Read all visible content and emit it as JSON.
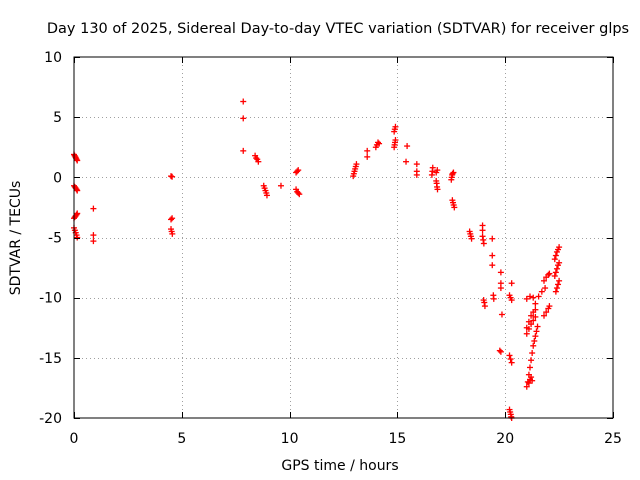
{
  "chart_data": {
    "type": "scatter",
    "title": "Day 130 of 2025, Sidereal Day-to-day VTEC variation (SDTVAR) for receiver glps",
    "xlabel": "GPS time / hours",
    "ylabel": "SDTVAR / TECUs",
    "xlim": [
      0,
      25
    ],
    "ylim": [
      -20,
      10
    ],
    "xticks": [
      0,
      5,
      10,
      15,
      20,
      25
    ],
    "yticks": [
      -20,
      -15,
      -10,
      -5,
      0,
      5,
      10
    ],
    "grid": true,
    "marker": "+",
    "color": "#ff0000",
    "series": [
      {
        "name": "SDTVAR",
        "points": [
          [
            0.0,
            1.9
          ],
          [
            0.03,
            1.8
          ],
          [
            0.06,
            1.7
          ],
          [
            0.09,
            1.6
          ],
          [
            0.12,
            1.5
          ],
          [
            0.15,
            1.4
          ],
          [
            0.0,
            -0.7
          ],
          [
            0.04,
            -0.8
          ],
          [
            0.08,
            -0.9
          ],
          [
            0.12,
            -1.0
          ],
          [
            0.15,
            -1.1
          ],
          [
            0.0,
            -3.4
          ],
          [
            0.04,
            -3.3
          ],
          [
            0.08,
            -3.2
          ],
          [
            0.12,
            -3.1
          ],
          [
            0.15,
            -3.0
          ],
          [
            0.0,
            -4.2
          ],
          [
            0.04,
            -4.4
          ],
          [
            0.08,
            -4.6
          ],
          [
            0.12,
            -4.8
          ],
          [
            0.15,
            -5.0
          ],
          [
            0.9,
            -2.6
          ],
          [
            0.9,
            -4.8
          ],
          [
            0.9,
            -5.3
          ],
          [
            4.5,
            0.1
          ],
          [
            4.55,
            0.05
          ],
          [
            4.5,
            -3.5
          ],
          [
            4.55,
            -3.4
          ],
          [
            4.5,
            -4.3
          ],
          [
            4.53,
            -4.5
          ],
          [
            4.56,
            -4.7
          ],
          [
            7.85,
            6.3
          ],
          [
            7.85,
            4.9
          ],
          [
            7.85,
            2.2
          ],
          [
            8.4,
            1.8
          ],
          [
            8.45,
            1.6
          ],
          [
            8.5,
            1.5
          ],
          [
            8.55,
            1.3
          ],
          [
            8.8,
            -0.7
          ],
          [
            8.84,
            -0.9
          ],
          [
            8.88,
            -1.1
          ],
          [
            8.92,
            -1.3
          ],
          [
            8.95,
            -1.5
          ],
          [
            9.6,
            -0.7
          ],
          [
            10.3,
            0.4
          ],
          [
            10.35,
            0.5
          ],
          [
            10.4,
            0.6
          ],
          [
            10.3,
            -1.0
          ],
          [
            10.35,
            -1.2
          ],
          [
            10.4,
            -1.3
          ],
          [
            10.45,
            -1.4
          ],
          [
            12.95,
            0.1
          ],
          [
            12.98,
            0.3
          ],
          [
            13.01,
            0.5
          ],
          [
            13.04,
            0.7
          ],
          [
            13.07,
            0.9
          ],
          [
            13.1,
            1.1
          ],
          [
            13.6,
            1.7
          ],
          [
            13.6,
            2.2
          ],
          [
            14.0,
            2.5
          ],
          [
            14.05,
            2.7
          ],
          [
            14.1,
            2.9
          ],
          [
            14.15,
            2.8
          ],
          [
            14.85,
            2.5
          ],
          [
            14.87,
            2.7
          ],
          [
            14.89,
            2.9
          ],
          [
            14.91,
            3.1
          ],
          [
            14.85,
            3.8
          ],
          [
            14.88,
            4.0
          ],
          [
            14.91,
            4.2
          ],
          [
            15.4,
            1.3
          ],
          [
            15.45,
            2.6
          ],
          [
            15.9,
            0.2
          ],
          [
            15.9,
            0.5
          ],
          [
            15.9,
            1.1
          ],
          [
            16.6,
            0.2
          ],
          [
            16.62,
            0.5
          ],
          [
            16.64,
            0.8
          ],
          [
            16.8,
            -0.3
          ],
          [
            16.82,
            -0.5
          ],
          [
            16.84,
            -0.8
          ],
          [
            16.86,
            -1.0
          ],
          [
            16.8,
            0.4
          ],
          [
            16.85,
            0.6
          ],
          [
            17.5,
            -0.2
          ],
          [
            17.52,
            0.0
          ],
          [
            17.54,
            0.2
          ],
          [
            17.56,
            0.3
          ],
          [
            17.6,
            0.4
          ],
          [
            17.55,
            -1.9
          ],
          [
            17.58,
            -2.1
          ],
          [
            17.61,
            -2.3
          ],
          [
            17.64,
            -2.5
          ],
          [
            18.35,
            -4.5
          ],
          [
            18.38,
            -4.7
          ],
          [
            18.41,
            -4.9
          ],
          [
            18.44,
            -5.1
          ],
          [
            18.95,
            -4.0
          ],
          [
            18.95,
            -4.4
          ],
          [
            18.95,
            -4.9
          ],
          [
            18.98,
            -5.2
          ],
          [
            19.01,
            -5.5
          ],
          [
            19.0,
            -10.2
          ],
          [
            19.03,
            -10.4
          ],
          [
            19.06,
            -10.7
          ],
          [
            19.4,
            -5.1
          ],
          [
            19.4,
            -6.5
          ],
          [
            19.4,
            -7.3
          ],
          [
            19.45,
            -9.8
          ],
          [
            19.47,
            -10.1
          ],
          [
            19.8,
            -7.9
          ],
          [
            19.8,
            -8.8
          ],
          [
            19.8,
            -9.2
          ],
          [
            19.85,
            -11.4
          ],
          [
            19.75,
            -14.4
          ],
          [
            19.8,
            -14.5
          ],
          [
            20.3,
            -8.8
          ],
          [
            20.2,
            -9.8
          ],
          [
            20.25,
            -10.0
          ],
          [
            20.3,
            -10.2
          ],
          [
            20.2,
            -14.8
          ],
          [
            20.25,
            -15.1
          ],
          [
            20.3,
            -15.4
          ],
          [
            20.2,
            -19.3
          ],
          [
            20.23,
            -19.5
          ],
          [
            20.26,
            -19.7
          ],
          [
            20.28,
            -19.9
          ],
          [
            20.3,
            -20.0
          ],
          [
            21.0,
            -10.1
          ],
          [
            21.15,
            -9.9
          ],
          [
            21.3,
            -10.0
          ],
          [
            21.0,
            -12.5
          ],
          [
            21.1,
            -12.0
          ],
          [
            21.2,
            -11.5
          ],
          [
            21.3,
            -11.2
          ],
          [
            21.4,
            -11.0
          ],
          [
            21.0,
            -13.0
          ],
          [
            21.1,
            -12.6
          ],
          [
            21.2,
            -12.2
          ],
          [
            21.3,
            -11.9
          ],
          [
            21.4,
            -11.6
          ],
          [
            21.4,
            -10.5
          ],
          [
            21.55,
            -9.9
          ],
          [
            21.7,
            -9.5
          ],
          [
            21.85,
            -9.2
          ],
          [
            21.0,
            -17.4
          ],
          [
            21.05,
            -17.0
          ],
          [
            21.1,
            -16.4
          ],
          [
            21.15,
            -15.8
          ],
          [
            21.2,
            -15.2
          ],
          [
            21.25,
            -14.6
          ],
          [
            21.3,
            -14.0
          ],
          [
            21.35,
            -13.6
          ],
          [
            21.4,
            -13.2
          ],
          [
            21.45,
            -12.8
          ],
          [
            21.5,
            -12.4
          ],
          [
            21.1,
            -17.1
          ],
          [
            21.15,
            -16.8
          ],
          [
            21.2,
            -16.6
          ],
          [
            21.25,
            -16.9
          ],
          [
            21.8,
            -11.5
          ],
          [
            21.9,
            -11.2
          ],
          [
            22.0,
            -10.9
          ],
          [
            22.05,
            -10.7
          ],
          [
            21.8,
            -8.6
          ],
          [
            21.9,
            -8.3
          ],
          [
            22.0,
            -8.1
          ],
          [
            22.05,
            -8.0
          ],
          [
            22.35,
            -9.5
          ],
          [
            22.4,
            -9.2
          ],
          [
            22.45,
            -8.9
          ],
          [
            22.5,
            -8.6
          ],
          [
            22.3,
            -8.2
          ],
          [
            22.35,
            -7.9
          ],
          [
            22.4,
            -7.6
          ],
          [
            22.45,
            -7.3
          ],
          [
            22.5,
            -7.1
          ],
          [
            22.3,
            -6.8
          ],
          [
            22.35,
            -6.5
          ],
          [
            22.4,
            -6.2
          ],
          [
            22.45,
            -6.0
          ],
          [
            22.5,
            -5.8
          ]
        ]
      }
    ]
  }
}
